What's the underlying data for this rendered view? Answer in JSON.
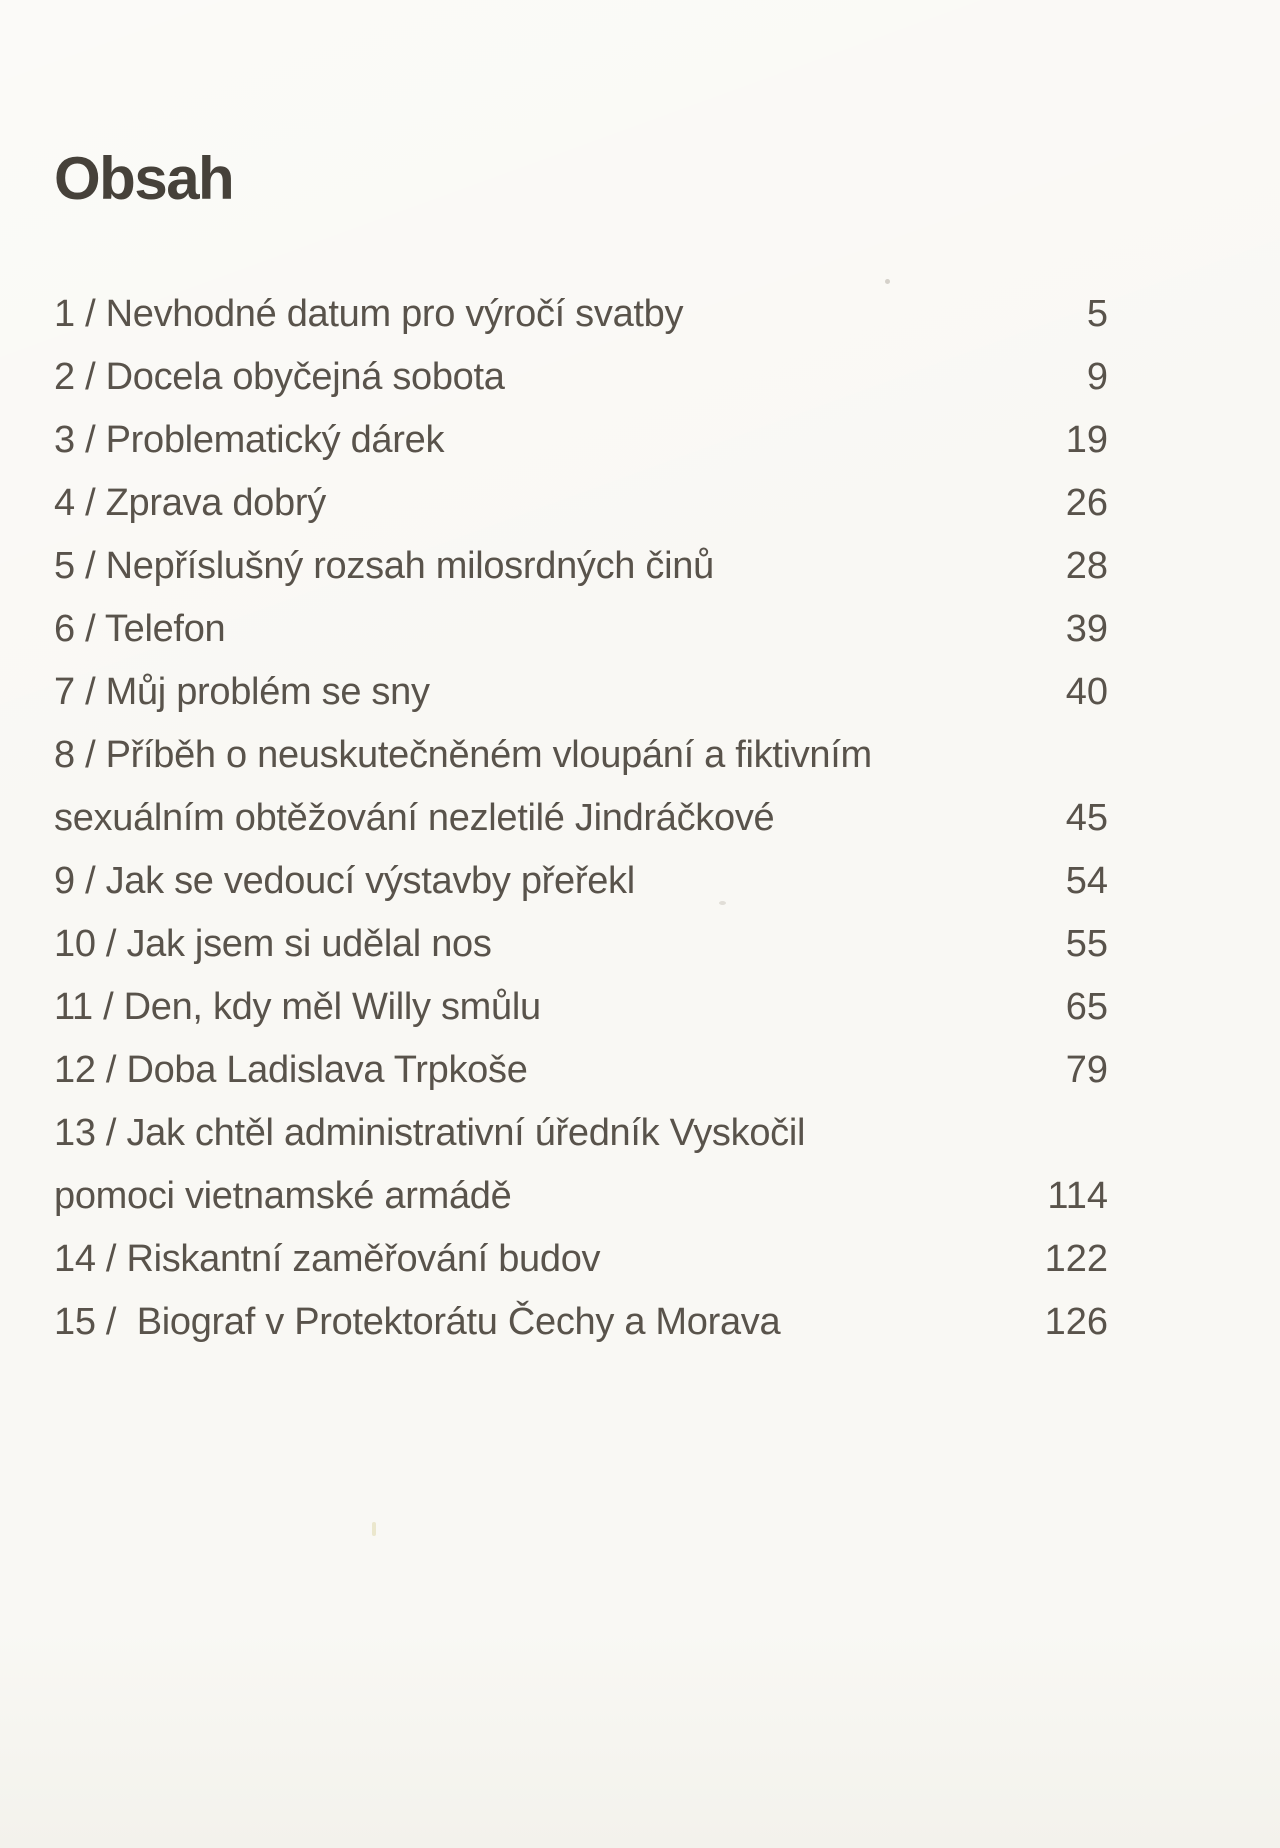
{
  "page": {
    "title": "Obsah",
    "entries": [
      {
        "lines": [
          "1 / Nevhodné datum pro výročí svatby"
        ],
        "page": "5"
      },
      {
        "lines": [
          "2 / Docela obyčejná sobota"
        ],
        "page": "9"
      },
      {
        "lines": [
          "3 / Problematický dárek"
        ],
        "page": "19"
      },
      {
        "lines": [
          "4 / Zprava dobrý"
        ],
        "page": "26"
      },
      {
        "lines": [
          "5 / Nepříslušný rozsah milosrdných činů"
        ],
        "page": "28"
      },
      {
        "lines": [
          "6 / Telefon"
        ],
        "page": "39"
      },
      {
        "lines": [
          "7 / Můj problém se sny"
        ],
        "page": "40"
      },
      {
        "lines": [
          "8 / Příběh o neuskutečněném vloupání a fiktivním",
          "sexuálním obtěžování nezletilé Jindráčkové"
        ],
        "page": "45"
      },
      {
        "lines": [
          "9 / Jak se vedoucí výstavby přeřekl"
        ],
        "page": "54"
      },
      {
        "lines": [
          "10 / Jak jsem si udělal nos"
        ],
        "page": "55"
      },
      {
        "lines": [
          "11 / Den, kdy měl Willy smůlu"
        ],
        "page": "65"
      },
      {
        "lines": [
          "12 / Doba Ladislava Trpkoše"
        ],
        "page": "79"
      },
      {
        "lines": [
          "13 / Jak chtěl administrativní úředník Vyskočil",
          "pomoci vietnamské armádě"
        ],
        "page": "114"
      },
      {
        "lines": [
          "14 / Riskantní zaměřování budov"
        ],
        "page": "122"
      },
      {
        "lines": [
          "15 /  Biograf v Protektorátu Čechy a Morava"
        ],
        "page": "126"
      }
    ]
  },
  "colors": {
    "paper": "#f9f8f4",
    "ink": "#59534b",
    "title_ink": "#46413a"
  }
}
